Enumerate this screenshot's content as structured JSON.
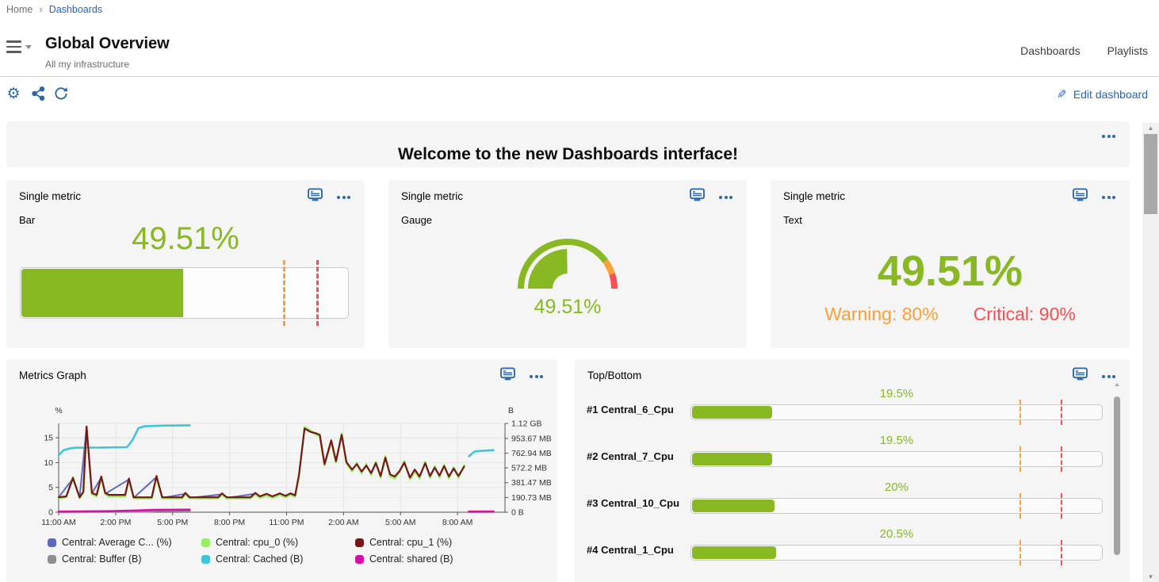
{
  "theme": {
    "green": "#88B922",
    "orange": "#F9A03A",
    "red": "#F94F53",
    "icon_blue": "#2E67A8",
    "link_blue": "#2265C0",
    "panel_bg": "#f5f5f5"
  },
  "breadcrumb": {
    "home": "Home",
    "current": "Dashboards"
  },
  "header": {
    "title": "Global Overview",
    "subtitle": "All my infrastructure",
    "tabs": [
      {
        "label": "Dashboards"
      },
      {
        "label": "Playlists"
      }
    ],
    "edit_label": "Edit dashboard"
  },
  "banner": {
    "title": "Welcome to the new Dashboards interface!"
  },
  "panels": {
    "bar": {
      "title": "Single metric",
      "subtitle": "Bar",
      "value": 49.51,
      "value_label": "49.51%",
      "warning": 80,
      "critical": 90
    },
    "gauge": {
      "title": "Single metric",
      "subtitle": "Gauge",
      "value": 49.51,
      "value_label": "49.51%",
      "warning": 80,
      "critical": 90
    },
    "text": {
      "title": "Single metric",
      "subtitle": "Text",
      "value_label": "49.51%",
      "warning_label": "Warning: 80%",
      "critical_label": "Critical: 90%"
    },
    "metrics_graph": {
      "title": "Metrics Graph"
    },
    "top_bottom": {
      "title": "Top/Bottom",
      "warning": 80,
      "critical": 90,
      "max": 100,
      "rows": [
        {
          "label": "#1 Central_6_Cpu",
          "value": 19.5,
          "value_label": "19.5%"
        },
        {
          "label": "#2 Central_7_Cpu",
          "value": 19.5,
          "value_label": "19.5%"
        },
        {
          "label": "#3 Central_10_Cpu",
          "value": 20,
          "value_label": "20%"
        },
        {
          "label": "#4 Central_1_Cpu",
          "value": 20.5,
          "value_label": "20.5%"
        }
      ]
    }
  },
  "chart_data": {
    "type": "line",
    "title": "Metrics Graph",
    "x_axis": {
      "unit": "hours from 11:00 AM",
      "range": [
        0,
        23.5
      ],
      "tick_hours": [
        0,
        3,
        6,
        9,
        12,
        15,
        18,
        21
      ],
      "tick_labels": [
        "11:00 AM",
        "2:00 PM",
        "5:00 PM",
        "8:00 PM",
        "11:00 PM",
        "2:00 AM",
        "5:00 AM",
        "8:00 AM"
      ]
    },
    "left_axis": {
      "label": "%",
      "min": 0,
      "max": 17.9,
      "ticks": [
        0,
        5,
        10,
        15
      ]
    },
    "right_axis": {
      "label": "B",
      "min": 0,
      "max": 1146.88,
      "unit": "MB",
      "ticks": [
        {
          "v": 0,
          "label": "0 B"
        },
        {
          "v": 190.73,
          "label": "190.73 MB"
        },
        {
          "v": 381.47,
          "label": "381.47 MB"
        },
        {
          "v": 572.2,
          "label": "572.2 MB"
        },
        {
          "v": 762.94,
          "label": "762.94 MB"
        },
        {
          "v": 953.67,
          "label": "953.67 MB"
        },
        {
          "v": 1146.88,
          "label": "1.12 GB"
        }
      ]
    },
    "draw_order": [
      3,
      4,
      5,
      0,
      1,
      2
    ],
    "series": [
      {
        "name": "Central: Average C... (%)",
        "color": "#5C6BC0",
        "axis": "left",
        "width": 2,
        "segments": [
          [
            [
              0,
              3
            ],
            [
              0.75,
              6.8
            ],
            [
              1.1,
              3
            ],
            [
              1.47,
              17.1
            ],
            [
              1.75,
              3.8
            ],
            [
              2.24,
              7.0
            ],
            [
              2.45,
              3.7
            ],
            [
              3.7,
              6.6
            ],
            [
              3.95,
              2.9
            ],
            [
              5.15,
              7.1
            ],
            [
              5.45,
              2.9
            ],
            [
              6.67,
              3.7
            ],
            [
              6.9,
              2.9
            ],
            [
              8.6,
              3.6
            ],
            [
              8.85,
              2.9
            ],
            [
              10.35,
              3.7
            ],
            [
              10.6,
              3.0
            ],
            [
              10.95,
              3.5
            ],
            [
              11.25,
              3.0
            ],
            [
              11.65,
              3.6
            ],
            [
              11.95,
              3.1
            ],
            [
              12.2,
              3.6
            ],
            [
              12.45,
              3.2
            ],
            [
              12.65,
              7.3
            ],
            [
              12.95,
              17.0
            ],
            [
              13.25,
              16.3
            ],
            [
              13.55,
              15.7
            ],
            [
              13.75,
              15.4
            ],
            [
              14.0,
              9.5
            ],
            [
              14.35,
              14.3
            ],
            [
              14.6,
              10.1
            ],
            [
              14.9,
              15.7
            ],
            [
              15.15,
              9.9
            ],
            [
              15.45,
              8.4
            ],
            [
              15.7,
              9.8
            ],
            [
              15.95,
              8.0
            ],
            [
              16.2,
              9.5
            ],
            [
              16.45,
              7.7
            ],
            [
              16.7,
              10.0
            ],
            [
              16.95,
              7.1
            ],
            [
              17.2,
              11.1
            ],
            [
              17.45,
              7.4
            ],
            [
              17.7,
              7.0
            ],
            [
              17.95,
              8.1
            ],
            [
              18.2,
              10.1
            ],
            [
              18.5,
              6.8
            ],
            [
              18.75,
              8.4
            ],
            [
              19.0,
              7.0
            ],
            [
              19.3,
              10.0
            ],
            [
              19.55,
              7.1
            ],
            [
              19.8,
              9.1
            ],
            [
              20.05,
              7.2
            ],
            [
              20.3,
              9.4
            ],
            [
              20.55,
              7.0
            ],
            [
              20.8,
              8.9
            ],
            [
              21.05,
              7.1
            ],
            [
              21.35,
              9.3
            ]
          ]
        ]
      },
      {
        "name": "Central: cpu_0 (%)",
        "color": "#92F25A",
        "axis": "left",
        "width": 2.4,
        "segments": [
          [
            [
              0,
              2.8
            ],
            [
              0.4,
              3.0
            ],
            [
              0.75,
              7.1
            ],
            [
              1.1,
              2.8
            ],
            [
              1.3,
              3.9
            ],
            [
              1.47,
              17.0
            ],
            [
              1.75,
              3.6
            ],
            [
              2.0,
              3.2
            ],
            [
              2.24,
              6.9
            ],
            [
              2.45,
              3.6
            ],
            [
              2.65,
              3.2
            ],
            [
              3.5,
              3.2
            ],
            [
              3.7,
              6.5
            ],
            [
              3.95,
              2.8
            ],
            [
              4.9,
              2.8
            ],
            [
              5.15,
              7.0
            ],
            [
              5.45,
              2.8
            ],
            [
              6.5,
              2.8
            ],
            [
              6.67,
              3.6
            ],
            [
              6.9,
              2.8
            ],
            [
              8.4,
              2.8
            ],
            [
              8.6,
              3.5
            ],
            [
              8.85,
              2.8
            ],
            [
              10.1,
              2.8
            ],
            [
              10.35,
              3.6
            ],
            [
              10.6,
              2.9
            ],
            [
              10.95,
              3.4
            ],
            [
              11.25,
              2.9
            ],
            [
              11.65,
              3.5
            ],
            [
              11.95,
              3.0
            ],
            [
              12.2,
              3.5
            ],
            [
              12.45,
              3.1
            ],
            [
              12.65,
              7.2
            ],
            [
              12.95,
              17.2
            ],
            [
              13.25,
              16.5
            ],
            [
              13.55,
              15.6
            ],
            [
              13.75,
              15.3
            ],
            [
              14.0,
              9.4
            ],
            [
              14.35,
              14.2
            ],
            [
              14.6,
              10.0
            ],
            [
              14.9,
              15.9
            ],
            [
              15.15,
              9.8
            ],
            [
              15.45,
              8.2
            ],
            [
              15.7,
              10.0
            ],
            [
              15.95,
              7.8
            ],
            [
              16.2,
              9.7
            ],
            [
              16.45,
              7.5
            ],
            [
              16.7,
              10.2
            ],
            [
              16.95,
              6.9
            ],
            [
              17.2,
              11.3
            ],
            [
              17.45,
              7.2
            ],
            [
              17.7,
              6.8
            ],
            [
              17.95,
              8.0
            ],
            [
              18.2,
              10.3
            ],
            [
              18.5,
              6.6
            ],
            [
              18.75,
              8.2
            ],
            [
              19.0,
              6.8
            ],
            [
              19.3,
              10.2
            ],
            [
              19.55,
              6.9
            ],
            [
              19.8,
              9.3
            ],
            [
              20.05,
              7.0
            ],
            [
              20.3,
              9.6
            ],
            [
              20.55,
              6.8
            ],
            [
              20.8,
              9.1
            ],
            [
              21.05,
              6.9
            ],
            [
              21.35,
              9.5
            ]
          ]
        ]
      },
      {
        "name": "Central: cpu_1 (%)",
        "color": "#771518",
        "axis": "left",
        "width": 2.2,
        "segments": [
          [
            [
              0,
              3
            ],
            [
              0.4,
              3.2
            ],
            [
              0.75,
              6.9
            ],
            [
              1.1,
              3
            ],
            [
              1.3,
              4.1
            ],
            [
              1.47,
              17.3
            ],
            [
              1.75,
              3.9
            ],
            [
              2.0,
              3.5
            ],
            [
              2.24,
              7.2
            ],
            [
              2.45,
              3.9
            ],
            [
              2.65,
              3.5
            ],
            [
              3.5,
              3.5
            ],
            [
              3.7,
              6.8
            ],
            [
              3.95,
              3
            ],
            [
              4.9,
              3
            ],
            [
              5.15,
              7.3
            ],
            [
              5.45,
              3
            ],
            [
              6.5,
              3
            ],
            [
              6.67,
              3.9
            ],
            [
              6.9,
              3
            ],
            [
              8.4,
              3
            ],
            [
              8.6,
              3.8
            ],
            [
              8.85,
              3
            ],
            [
              10.1,
              3
            ],
            [
              10.35,
              3.9
            ],
            [
              10.6,
              3.2
            ],
            [
              10.95,
              3.7
            ],
            [
              11.25,
              3.2
            ],
            [
              11.65,
              3.8
            ],
            [
              11.95,
              3.3
            ],
            [
              12.2,
              3.8
            ],
            [
              12.45,
              3.4
            ],
            [
              12.65,
              7.5
            ],
            [
              12.95,
              16.9
            ],
            [
              13.25,
              16.2
            ],
            [
              13.55,
              15.9
            ],
            [
              13.75,
              15.6
            ],
            [
              14.0,
              9.7
            ],
            [
              14.35,
              14.5
            ],
            [
              14.6,
              10.3
            ],
            [
              14.9,
              15.6
            ],
            [
              15.15,
              10.1
            ],
            [
              15.45,
              8.6
            ],
            [
              15.7,
              9.7
            ],
            [
              15.95,
              8.2
            ],
            [
              16.2,
              9.4
            ],
            [
              16.45,
              7.9
            ],
            [
              16.7,
              9.9
            ],
            [
              16.95,
              7.3
            ],
            [
              17.2,
              11.0
            ],
            [
              17.45,
              7.6
            ],
            [
              17.7,
              7.2
            ],
            [
              17.95,
              8.3
            ],
            [
              18.2,
              10.0
            ],
            [
              18.5,
              7.0
            ],
            [
              18.75,
              8.6
            ],
            [
              19.0,
              7.2
            ],
            [
              19.3,
              9.9
            ],
            [
              19.55,
              7.3
            ],
            [
              19.8,
              9.0
            ],
            [
              20.05,
              7.4
            ],
            [
              20.3,
              9.3
            ],
            [
              20.55,
              7.2
            ],
            [
              20.8,
              8.8
            ],
            [
              21.05,
              7.3
            ],
            [
              21.35,
              9.2
            ]
          ]
        ]
      },
      {
        "name": "Central: Buffer (B)",
        "color": "#8F8F8F",
        "axis": "right",
        "width": 2.4,
        "segments": [
          [
            [
              0,
              3
            ],
            [
              4.5,
              6
            ],
            [
              5.5,
              18
            ],
            [
              6.9,
              20
            ]
          ],
          [
            [
              21.6,
              3
            ],
            [
              22.9,
              3
            ]
          ]
        ]
      },
      {
        "name": "Central: Cached (B)",
        "color": "#3EC6D8",
        "axis": "right",
        "width": 2.6,
        "segments": [
          [
            [
              0,
              735
            ],
            [
              0.25,
              800
            ],
            [
              0.6,
              825
            ],
            [
              0.9,
              833
            ],
            [
              2.0,
              835
            ],
            [
              3.6,
              840
            ],
            [
              3.9,
              935
            ],
            [
              4.2,
              1085
            ],
            [
              4.5,
              1110
            ],
            [
              5.5,
              1118
            ],
            [
              6.9,
              1122
            ]
          ],
          [
            [
              21.6,
              722
            ],
            [
              21.9,
              785
            ],
            [
              22.4,
              795
            ],
            [
              22.9,
              802
            ]
          ]
        ]
      },
      {
        "name": "Central: shared (B)",
        "color": "#D611A5",
        "axis": "right",
        "width": 2.6,
        "segments": [
          [
            [
              0,
              8
            ],
            [
              2.5,
              12
            ],
            [
              4.0,
              22
            ],
            [
              5.0,
              30
            ],
            [
              6.9,
              33
            ]
          ],
          [
            [
              21.6,
              8
            ],
            [
              22.9,
              10
            ]
          ]
        ]
      }
    ]
  }
}
